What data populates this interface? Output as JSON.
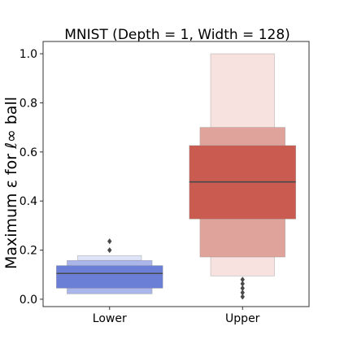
{
  "chart_data": {
    "type": "boxen",
    "title": "MNIST (Depth = 1, Width = 128)",
    "xlabel": "",
    "ylabel": "Maximum ε for ℓ∞ ball",
    "ylim": [
      -0.03,
      1.05
    ],
    "yticks": [
      0.0,
      0.2,
      0.4,
      0.6,
      0.8,
      1.0
    ],
    "ytick_labels": [
      "0.0",
      "0.2",
      "0.4",
      "0.6",
      "0.8",
      "1.0"
    ],
    "categories": [
      "Lower",
      "Upper"
    ],
    "boxes": [
      {
        "category": "Lower",
        "color": "#6b7fd7",
        "median": 0.105,
        "letter_values": [
          {
            "low": 0.045,
            "high": 0.137,
            "width": 1.0,
            "fill": "#6b7fd7"
          },
          {
            "low": 0.022,
            "high": 0.158,
            "width": 0.8,
            "fill": "#aab6ea"
          },
          {
            "low": 0.158,
            "high": 0.178,
            "width": 0.6,
            "fill": "#dfe4f8"
          }
        ],
        "outliers": [
          0.2,
          0.236
        ]
      },
      {
        "category": "Upper",
        "color": "#c95b51",
        "median": 0.478,
        "letter_values": [
          {
            "low": 0.327,
            "high": 0.626,
            "width": 1.0,
            "fill": "#c95b51"
          },
          {
            "low": 0.172,
            "high": 0.7,
            "width": 0.8,
            "fill": "#e0a39c"
          },
          {
            "low": 0.095,
            "high": 1.0,
            "width": 0.6,
            "fill": "#f7e2df"
          }
        ],
        "outliers": [
          0.01,
          0.027,
          0.045,
          0.063,
          0.08
        ]
      }
    ]
  }
}
